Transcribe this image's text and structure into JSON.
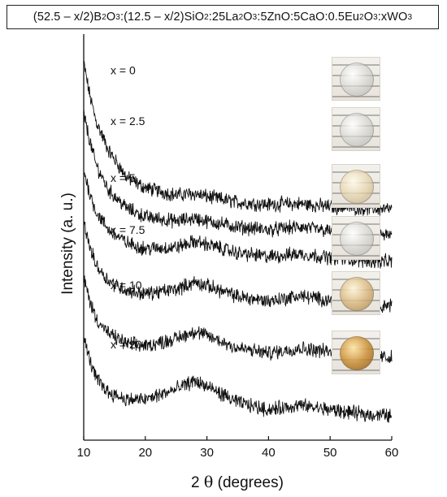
{
  "title": {
    "parts": [
      {
        "t": "(52.5 – x/2)B"
      },
      {
        "s": "2"
      },
      {
        "t": "O"
      },
      {
        "s": "3"
      },
      {
        "t": ":(12.5 – x/2)SiO"
      },
      {
        "s": "2"
      },
      {
        "t": ":25La"
      },
      {
        "s": "2"
      },
      {
        "t": "O"
      },
      {
        "s": "3"
      },
      {
        "t": ":5ZnO:5CaO:0.5Eu"
      },
      {
        "s": "2"
      },
      {
        "t": "O"
      },
      {
        "s": "3"
      },
      {
        "t": ":xWO"
      },
      {
        "s": "3"
      }
    ]
  },
  "axes": {
    "ylabel": "Intensity (a. u.)",
    "xlabel_prefix": "2",
    "xlabel_theta": "θ",
    "xlabel_suffix": " (degrees)"
  },
  "chart_data": {
    "type": "line",
    "xlim": [
      10,
      60
    ],
    "x_ticks": [
      10,
      20,
      30,
      40,
      50,
      60
    ],
    "y_ticks": [],
    "grid": false,
    "series": [
      {
        "name": "x = 0",
        "x": [
          10,
          11,
          12,
          14,
          17,
          20,
          25,
          28,
          30,
          35,
          40,
          45,
          50,
          55,
          60
        ],
        "y": [
          5.0,
          4.55,
          4.2,
          3.8,
          3.42,
          3.28,
          3.18,
          3.2,
          3.16,
          3.08,
          3.05,
          3.06,
          3.02,
          3.0,
          2.98
        ]
      },
      {
        "name": "x = 2.5",
        "x": [
          10,
          11,
          12,
          14,
          17,
          20,
          25,
          28,
          30,
          35,
          40,
          45,
          50,
          55,
          60
        ],
        "y": [
          4.3,
          3.92,
          3.6,
          3.25,
          3.0,
          2.88,
          2.82,
          2.86,
          2.82,
          2.74,
          2.7,
          2.74,
          2.68,
          2.64,
          2.62
        ]
      },
      {
        "name": "x = 5",
        "x": [
          10,
          11,
          12,
          14,
          17,
          20,
          25,
          28,
          30,
          35,
          40,
          45,
          50,
          55,
          60
        ],
        "y": [
          3.52,
          3.2,
          2.95,
          2.7,
          2.52,
          2.44,
          2.46,
          2.54,
          2.5,
          2.38,
          2.33,
          2.37,
          2.32,
          2.28,
          2.26
        ]
      },
      {
        "name": "x = 7.5",
        "x": [
          10,
          11,
          12,
          14,
          17,
          20,
          25,
          28,
          30,
          35,
          40,
          45,
          50,
          55,
          60
        ],
        "y": [
          2.8,
          2.46,
          2.22,
          2.0,
          1.86,
          1.82,
          1.88,
          1.98,
          1.93,
          1.78,
          1.72,
          1.79,
          1.73,
          1.68,
          1.66
        ]
      },
      {
        "name": "x = 10",
        "x": [
          10,
          11,
          12,
          14,
          17,
          20,
          25,
          28,
          30,
          35,
          40,
          45,
          50,
          55,
          60
        ],
        "y": [
          2.04,
          1.72,
          1.48,
          1.27,
          1.13,
          1.1,
          1.2,
          1.3,
          1.24,
          1.07,
          1.0,
          1.07,
          1.02,
          0.96,
          0.94
        ]
      },
      {
        "name": "x = 20",
        "x": [
          10,
          11,
          12,
          14,
          17,
          20,
          25,
          28,
          30,
          35,
          40,
          45,
          50,
          55,
          60
        ],
        "y": [
          1.22,
          0.9,
          0.66,
          0.46,
          0.36,
          0.36,
          0.5,
          0.62,
          0.54,
          0.32,
          0.22,
          0.28,
          0.22,
          0.16,
          0.14
        ]
      }
    ]
  },
  "insets": [
    {
      "label": "x = 0 glass sample photo",
      "style": "clear"
    },
    {
      "label": "x = 2.5 glass sample photo",
      "style": "clear"
    },
    {
      "label": "x = 5 glass sample photo",
      "style": "amber1"
    },
    {
      "label": "x = 7.5 glass sample photo",
      "style": "clear"
    },
    {
      "label": "x = 10 glass sample photo",
      "style": "amber2"
    },
    {
      "label": "x = 20 glass sample photo",
      "style": "amber3"
    }
  ]
}
